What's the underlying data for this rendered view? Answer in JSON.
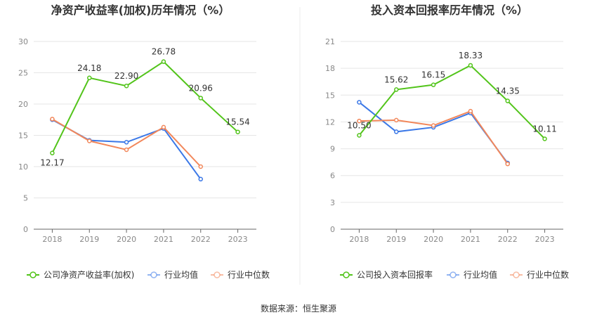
{
  "source_label": "数据来源：恒生聚源",
  "colors": {
    "company": "#52c41a",
    "industry_avg": "#3b78e7",
    "industry_median": "#f2875a"
  },
  "chart_data": [
    {
      "type": "line",
      "title": "净资产收益率(加权)历年情况（%）",
      "categories": [
        "2018",
        "2019",
        "2020",
        "2021",
        "2022",
        "2023"
      ],
      "ylim": [
        0,
        30
      ],
      "yticks": [
        0,
        5,
        10,
        15,
        20,
        25,
        30
      ],
      "grid": true,
      "legend": "bottom",
      "series": [
        {
          "name": "公司净资产收益率(加权)",
          "key": "company",
          "values": [
            12.17,
            24.18,
            22.9,
            26.78,
            20.96,
            15.54
          ],
          "labels": [
            "12.17",
            "24.18",
            "22.90",
            "26.78",
            "20.96",
            "15.54"
          ]
        },
        {
          "name": "行业均值",
          "key": "industry_avg",
          "values": [
            17.5,
            14.2,
            13.9,
            16.1,
            8.0,
            null
          ]
        },
        {
          "name": "行业中位数",
          "key": "industry_median",
          "values": [
            17.6,
            14.1,
            12.7,
            16.3,
            10.0,
            null
          ]
        }
      ]
    },
    {
      "type": "line",
      "title": "投入资本回报率历年情况（%）",
      "categories": [
        "2018",
        "2019",
        "2020",
        "2021",
        "2022",
        "2023"
      ],
      "ylim": [
        0,
        21
      ],
      "yticks": [
        0,
        3,
        6,
        9,
        12,
        15,
        18,
        21
      ],
      "grid": true,
      "legend": "bottom",
      "series": [
        {
          "name": "公司投入资本回报率",
          "key": "company",
          "values": [
            10.5,
            15.62,
            16.15,
            18.33,
            14.35,
            10.11
          ],
          "labels": [
            "10.50",
            "15.62",
            "16.15",
            "18.33",
            "14.35",
            "10.11"
          ]
        },
        {
          "name": "行业均值",
          "key": "industry_avg",
          "values": [
            14.2,
            10.9,
            11.4,
            13.0,
            7.4,
            null
          ]
        },
        {
          "name": "行业中位数",
          "key": "industry_median",
          "values": [
            12.1,
            12.2,
            11.6,
            13.2,
            7.3,
            null
          ]
        }
      ]
    }
  ]
}
